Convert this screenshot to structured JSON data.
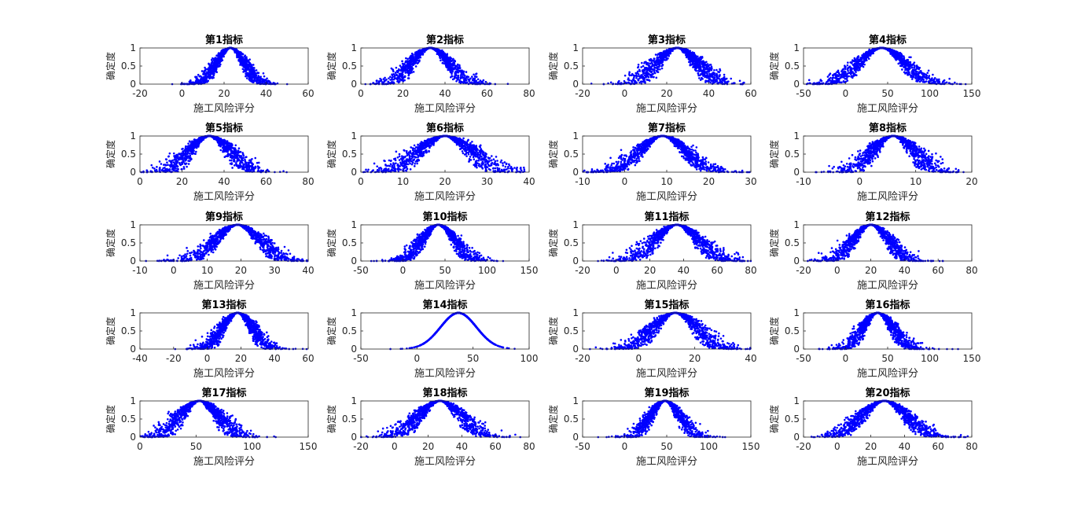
{
  "figure": {
    "xlabel": "施工风险评分",
    "ylabel": "确定度",
    "marker_color": "#0000ff",
    "axis_color": "#262626"
  },
  "chart_data": [
    {
      "type": "scatter",
      "title": "第1指标",
      "xlim": [
        -20,
        60
      ],
      "xticks": [
        -20,
        0,
        20,
        40,
        60
      ],
      "ylim": [
        0,
        1
      ],
      "yticks": [
        0,
        0.5,
        1
      ],
      "ytick_labels": [
        "0",
        "0.5",
        "1"
      ],
      "distribution": {
        "center": 23,
        "core_sd": 5,
        "spread_sd": 7,
        "n": 1200
      }
    },
    {
      "type": "scatter",
      "title": "第2指标",
      "xlim": [
        0,
        80
      ],
      "xticks": [
        0,
        20,
        40,
        60,
        80
      ],
      "ylim": [
        0,
        1
      ],
      "yticks": [
        0,
        0.5,
        1
      ],
      "ytick_labels": [
        "0",
        "0.5",
        "1"
      ],
      "distribution": {
        "center": 33,
        "core_sd": 7,
        "spread_sd": 9,
        "n": 1200
      }
    },
    {
      "type": "scatter",
      "title": "第3指标",
      "xlim": [
        -20,
        60
      ],
      "xticks": [
        -20,
        0,
        20,
        40,
        60
      ],
      "ylim": [
        0,
        1
      ],
      "yticks": [
        0,
        0.5,
        1
      ],
      "ytick_labels": [
        "0",
        "0.5",
        "1"
      ],
      "distribution": {
        "center": 25,
        "core_sd": 8,
        "spread_sd": 9,
        "n": 1200
      }
    },
    {
      "type": "scatter",
      "title": "第4指标",
      "xlim": [
        -50,
        150
      ],
      "xticks": [
        -50,
        0,
        50,
        100,
        150
      ],
      "ylim": [
        0,
        1
      ],
      "yticks": [
        0,
        0.5,
        1
      ],
      "ytick_labels": [
        "0",
        "0.5",
        "1"
      ],
      "distribution": {
        "center": 43,
        "core_sd": 20,
        "spread_sd": 30,
        "n": 1200
      }
    },
    {
      "type": "scatter",
      "title": "第5指标",
      "xlim": [
        0,
        80
      ],
      "xticks": [
        0,
        20,
        40,
        60,
        80
      ],
      "ylim": [
        0,
        1
      ],
      "yticks": [
        0,
        0.5,
        1
      ],
      "ytick_labels": [
        "0",
        "0.5",
        "1"
      ],
      "distribution": {
        "center": 33,
        "core_sd": 8,
        "spread_sd": 9,
        "n": 1200
      }
    },
    {
      "type": "scatter",
      "title": "第6指标",
      "xlim": [
        0,
        40
      ],
      "xticks": [
        0,
        10,
        20,
        30,
        40
      ],
      "ylim": [
        0,
        1
      ],
      "yticks": [
        0,
        0.5,
        1
      ],
      "ytick_labels": [
        "0",
        "0.5",
        "1"
      ],
      "distribution": {
        "center": 20,
        "core_sd": 5,
        "spread_sd": 6,
        "n": 1200
      }
    },
    {
      "type": "scatter",
      "title": "第7指标",
      "xlim": [
        -10,
        30
      ],
      "xticks": [
        -10,
        0,
        10,
        20,
        30
      ],
      "ylim": [
        0,
        1
      ],
      "yticks": [
        0,
        0.5,
        1
      ],
      "ytick_labels": [
        "0",
        "0.5",
        "1"
      ],
      "distribution": {
        "center": 9,
        "core_sd": 4,
        "spread_sd": 6,
        "n": 1200
      }
    },
    {
      "type": "scatter",
      "title": "第8指标",
      "xlim": [
        -10,
        20
      ],
      "xticks": [
        -10,
        0,
        10,
        20
      ],
      "ylim": [
        0,
        1
      ],
      "yticks": [
        0,
        0.5,
        1
      ],
      "ytick_labels": [
        "0",
        "0.5",
        "1"
      ],
      "distribution": {
        "center": 6,
        "core_sd": 3,
        "spread_sd": 3.5,
        "n": 1200
      }
    },
    {
      "type": "scatter",
      "title": "第9指标",
      "xlim": [
        -10,
        40
      ],
      "xticks": [
        -10,
        0,
        10,
        20,
        30,
        40
      ],
      "ylim": [
        0,
        1
      ],
      "yticks": [
        0,
        0.5,
        1
      ],
      "ytick_labels": [
        "0",
        "0.5",
        "1"
      ],
      "distribution": {
        "center": 19,
        "core_sd": 5,
        "spread_sd": 7,
        "n": 1200
      }
    },
    {
      "type": "scatter",
      "title": "第10指标",
      "xlim": [
        -50,
        150
      ],
      "xticks": [
        -50,
        0,
        50,
        100,
        150
      ],
      "ylim": [
        0,
        1
      ],
      "yticks": [
        0,
        0.5,
        1
      ],
      "ytick_labels": [
        "0",
        "0.5",
        "1"
      ],
      "distribution": {
        "center": 42,
        "core_sd": 15,
        "spread_sd": 20,
        "n": 1200
      }
    },
    {
      "type": "scatter",
      "title": "第11指标",
      "xlim": [
        -20,
        80
      ],
      "xticks": [
        -20,
        0,
        20,
        40,
        60,
        80
      ],
      "ylim": [
        0,
        1
      ],
      "yticks": [
        0,
        0.5,
        1
      ],
      "ytick_labels": [
        "0",
        "0.5",
        "1"
      ],
      "distribution": {
        "center": 36,
        "core_sd": 10,
        "spread_sd": 13,
        "n": 1200
      }
    },
    {
      "type": "scatter",
      "title": "第12指标",
      "xlim": [
        -20,
        80
      ],
      "xticks": [
        -20,
        0,
        20,
        40,
        60,
        80
      ],
      "ylim": [
        0,
        1
      ],
      "yticks": [
        0,
        0.5,
        1
      ],
      "ytick_labels": [
        "0",
        "0.5",
        "1"
      ],
      "distribution": {
        "center": 20,
        "core_sd": 8,
        "spread_sd": 11,
        "n": 1200
      }
    },
    {
      "type": "scatter",
      "title": "第13指标",
      "xlim": [
        -40,
        60
      ],
      "xticks": [
        -40,
        -20,
        0,
        20,
        40,
        60
      ],
      "ylim": [
        0,
        1
      ],
      "yticks": [
        0,
        0.5,
        1
      ],
      "ytick_labels": [
        "0",
        "0.5",
        "1"
      ],
      "distribution": {
        "center": 18,
        "core_sd": 7,
        "spread_sd": 9,
        "n": 1200
      }
    },
    {
      "type": "scatter",
      "title": "第14指标",
      "xlim": [
        -50,
        100
      ],
      "xticks": [
        -50,
        0,
        50,
        100
      ],
      "ylim": [
        0,
        1
      ],
      "yticks": [
        0,
        0.5,
        1
      ],
      "ytick_labels": [
        "0",
        "0.5",
        "1"
      ],
      "distribution": {
        "center": 37,
        "core_sd": 16,
        "spread_sd": 1,
        "n": 900
      }
    },
    {
      "type": "scatter",
      "title": "第15指标",
      "xlim": [
        -20,
        40
      ],
      "xticks": [
        -20,
        0,
        20,
        40
      ],
      "ylim": [
        0,
        1
      ],
      "yticks": [
        0,
        0.5,
        1
      ],
      "ytick_labels": [
        "0",
        "0.5",
        "1"
      ],
      "distribution": {
        "center": 13,
        "core_sd": 6,
        "spread_sd": 8,
        "n": 1200
      }
    },
    {
      "type": "scatter",
      "title": "第16指标",
      "xlim": [
        -50,
        150
      ],
      "xticks": [
        -50,
        0,
        50,
        100,
        150
      ],
      "ylim": [
        0,
        1
      ],
      "yticks": [
        0,
        0.5,
        1
      ],
      "ytick_labels": [
        "0",
        "0.5",
        "1"
      ],
      "distribution": {
        "center": 38,
        "core_sd": 14,
        "spread_sd": 18,
        "n": 1200
      }
    },
    {
      "type": "scatter",
      "title": "第17指标",
      "xlim": [
        0,
        150
      ],
      "xticks": [
        0,
        50,
        100,
        150
      ],
      "ylim": [
        0,
        1
      ],
      "yticks": [
        0,
        0.5,
        1
      ],
      "ytick_labels": [
        "0",
        "0.5",
        "1"
      ],
      "distribution": {
        "center": 53,
        "core_sd": 14,
        "spread_sd": 16,
        "n": 1200
      }
    },
    {
      "type": "scatter",
      "title": "第18指标",
      "xlim": [
        -20,
        80
      ],
      "xticks": [
        -20,
        0,
        20,
        40,
        60,
        80
      ],
      "ylim": [
        0,
        1
      ],
      "yticks": [
        0,
        0.5,
        1
      ],
      "ytick_labels": [
        "0",
        "0.5",
        "1"
      ],
      "distribution": {
        "center": 27,
        "core_sd": 10,
        "spread_sd": 13,
        "n": 1200
      }
    },
    {
      "type": "scatter",
      "title": "第19指标",
      "xlim": [
        -50,
        150
      ],
      "xticks": [
        -50,
        0,
        50,
        100,
        150
      ],
      "ylim": [
        0,
        1
      ],
      "yticks": [
        0,
        0.5,
        1
      ],
      "ytick_labels": [
        "0",
        "0.5",
        "1"
      ],
      "distribution": {
        "center": 48,
        "core_sd": 14,
        "spread_sd": 17,
        "n": 1200
      }
    },
    {
      "type": "scatter",
      "title": "第20指标",
      "xlim": [
        -20,
        80
      ],
      "xticks": [
        -20,
        0,
        20,
        40,
        60,
        80
      ],
      "ylim": [
        0,
        1
      ],
      "yticks": [
        0,
        0.5,
        1
      ],
      "ytick_labels": [
        "0",
        "0.5",
        "1"
      ],
      "distribution": {
        "center": 28,
        "core_sd": 10,
        "spread_sd": 14,
        "n": 1200
      }
    }
  ]
}
